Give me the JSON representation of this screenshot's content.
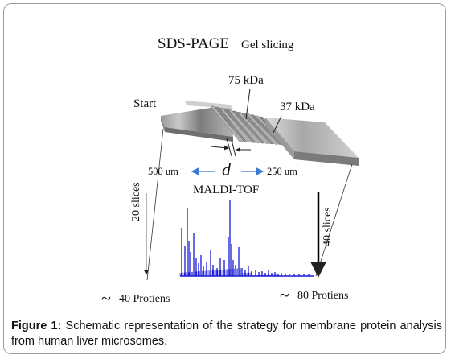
{
  "diagram": {
    "title_main": "SDS-PAGE",
    "title_sub": "Gel slicing",
    "start_label": "Start",
    "marker_75": "75  kDa",
    "marker_37": "37 kDa",
    "distance_label": "d",
    "left_width": "500 um",
    "right_width": "250 um",
    "maldi_label": "MALDI-TOF",
    "left_slices": "20 slices",
    "right_slices": "40 slices",
    "left_proteins": "40 Protiens",
    "right_proteins": "80 Protiens",
    "tilde": "~",
    "spectrum_color": "#1a1ad6",
    "arrow_color": "#3a7bd5"
  },
  "caption": {
    "label": "Figure 1:",
    "text": " Schematic representation of the strategy for membrane protein analysis from human liver microsomes."
  }
}
